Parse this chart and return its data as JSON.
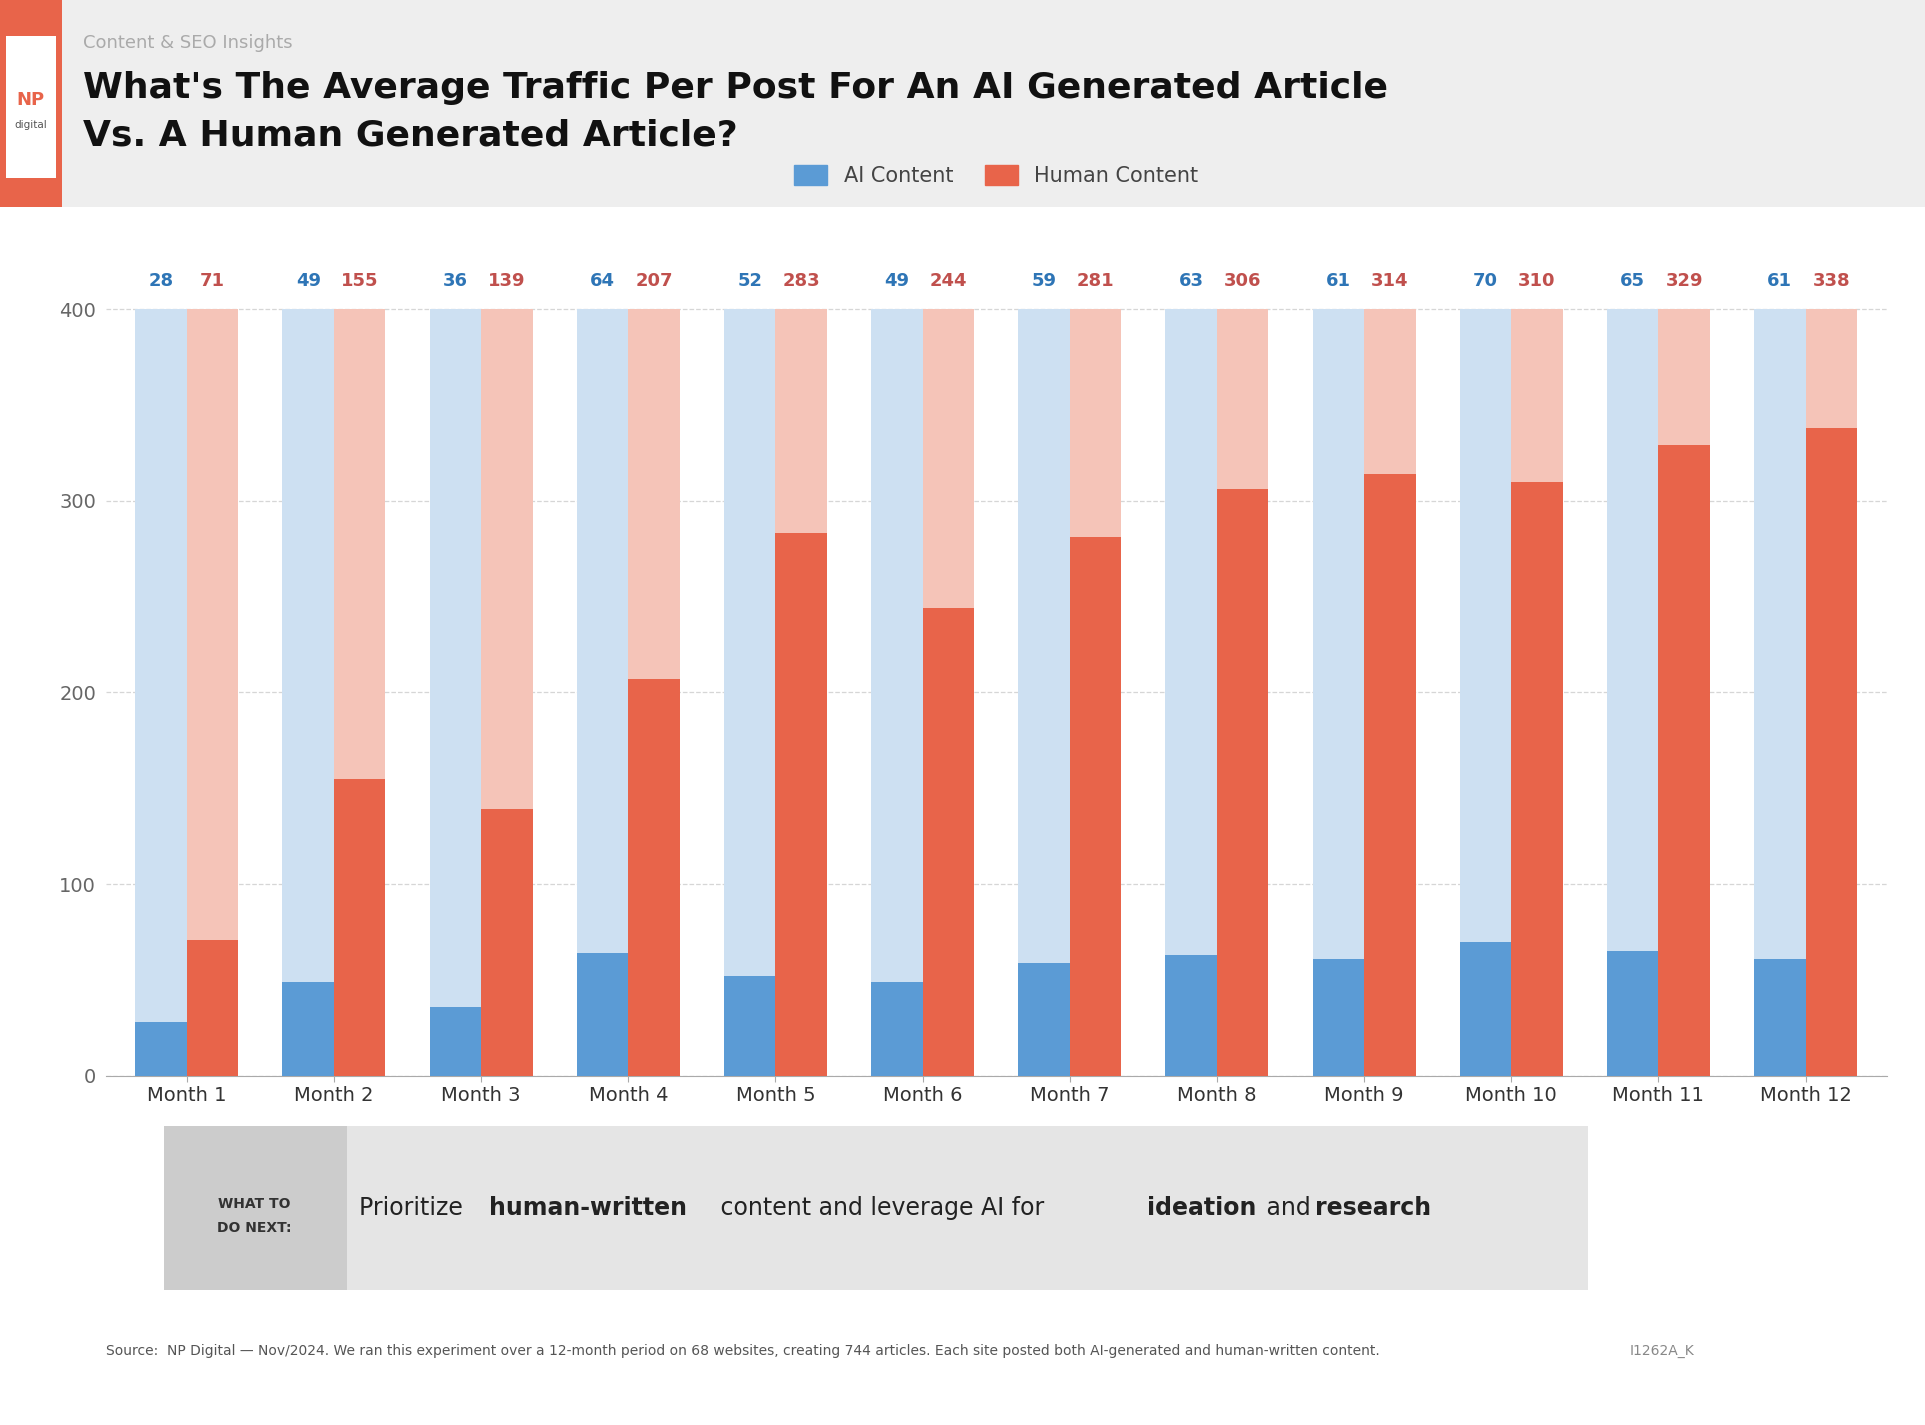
{
  "months": [
    "Month 1",
    "Month 2",
    "Month 3",
    "Month 4",
    "Month 5",
    "Month 6",
    "Month 7",
    "Month 8",
    "Month 9",
    "Month 10",
    "Month 11",
    "Month 12"
  ],
  "ai_values": [
    28,
    49,
    36,
    64,
    52,
    49,
    59,
    63,
    61,
    70,
    65,
    61
  ],
  "human_values": [
    71,
    155,
    139,
    207,
    283,
    244,
    281,
    306,
    314,
    310,
    329,
    338
  ],
  "ai_color_solid": "#5b9bd5",
  "ai_color_light": "#cde0f2",
  "human_color_solid": "#e8644a",
  "human_color_light": "#f5c4b8",
  "ai_label_color": "#2e75b6",
  "human_label_color": "#c0504d",
  "bg_color": "#ffffff",
  "header_bg": "#f0f0f0",
  "grid_color": "#cccccc",
  "title_line1": "What's The Average Traffic Per Post For An AI Generated Article",
  "title_line2": "Vs. A Human Generated Article?",
  "subtitle": "Content & SEO Insights",
  "legend_ai": "AI Content",
  "legend_human": "Human Content",
  "ylim": [
    0,
    420
  ],
  "yticks": [
    0,
    100,
    200,
    300,
    400
  ],
  "source_text": "Source:  NP Digital — Nov/2024. We ran this experiment over a 12-month period on 68 websites, creating 744 articles. Each site posted both AI-generated and human-written content.",
  "source_code": "I1262A_K",
  "np_color": "#e8644a",
  "bar_width": 0.35,
  "bar_max": 400
}
